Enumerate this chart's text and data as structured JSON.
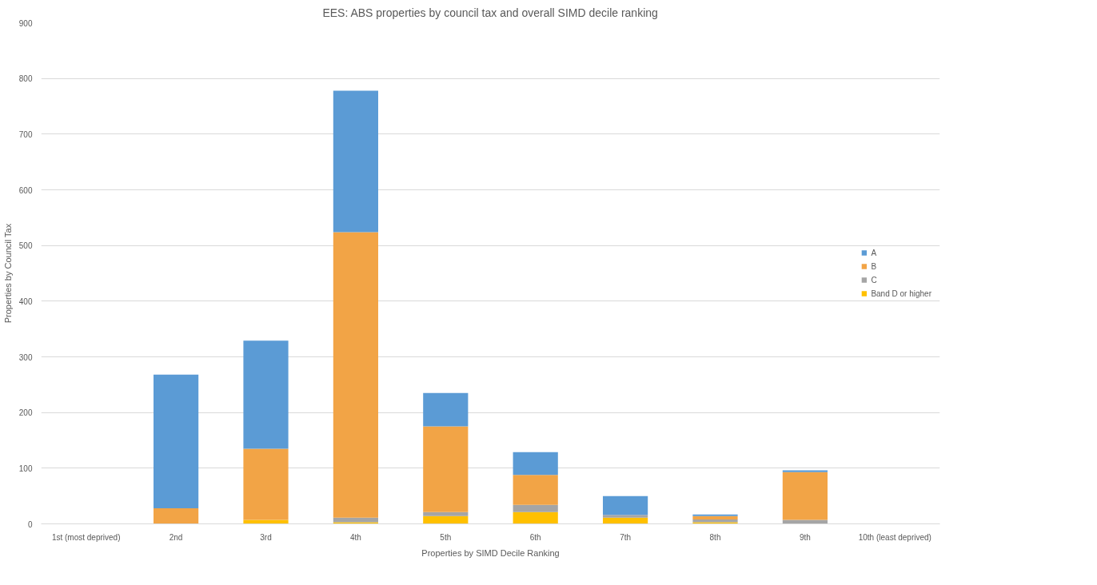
{
  "chart_data": {
    "type": "bar",
    "title": "EES: ABS properties by council tax and overall SIMD decile ranking",
    "xlabel": "Properties by SIMD Decile Ranking",
    "ylabel": "Properties by Council Tax",
    "categories": [
      "1st (most deprived)",
      "2nd",
      "3rd",
      "4th",
      "5th",
      "6th",
      "7th",
      "8th",
      "9th",
      "10th (least deprived)"
    ],
    "stacked": true,
    "series": [
      {
        "name": "Band D or higher",
        "color": "#ffc000",
        "values": [
          0,
          0,
          7,
          3,
          14,
          21,
          11,
          3,
          0,
          0
        ]
      },
      {
        "name": "C",
        "color": "#a5a5a5",
        "values": [
          0,
          0,
          0,
          8,
          7,
          13,
          5,
          5,
          7,
          0
        ]
      },
      {
        "name": "B",
        "color": "#f2a446",
        "values": [
          0,
          28,
          128,
          513,
          154,
          54,
          0,
          6,
          86,
          0
        ]
      },
      {
        "name": "A",
        "color": "#5b9bd5",
        "values": [
          0,
          240,
          194,
          254,
          60,
          41,
          34,
          3,
          3,
          0
        ]
      }
    ],
    "ylim": [
      0,
      900
    ],
    "yticks": [
      0,
      100,
      200,
      300,
      400,
      500,
      600,
      700,
      800,
      900
    ],
    "grid": "y",
    "legend": "right"
  }
}
